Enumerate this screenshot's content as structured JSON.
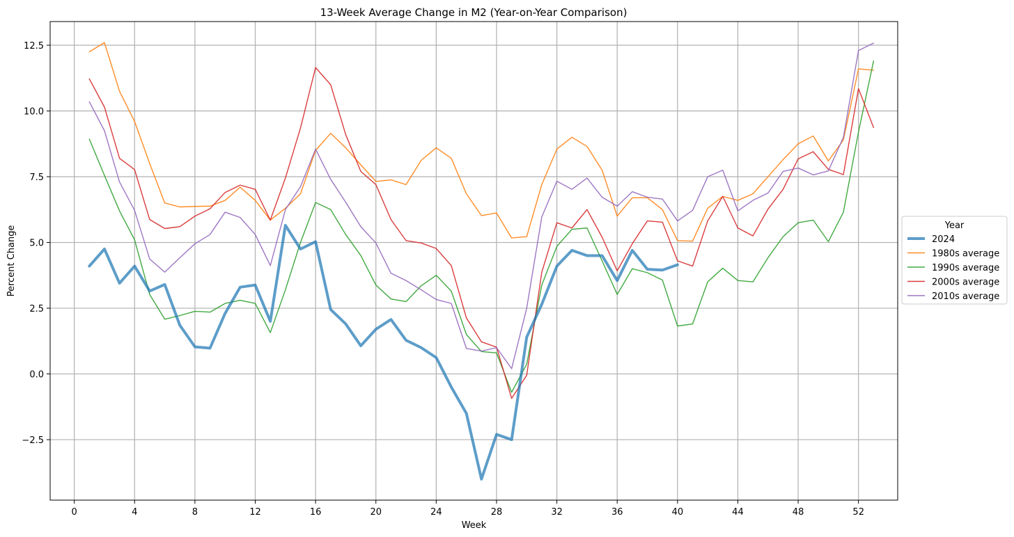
{
  "chart_data": {
    "type": "line",
    "title": "13-Week Average Change in M2 (Year-on-Year Comparison)",
    "xlabel": "Week",
    "ylabel": "Percent Change",
    "xlim": [
      -1.6,
      54.6
    ],
    "ylim": [
      -4.8,
      13.4
    ],
    "xticks": [
      0,
      4,
      8,
      12,
      16,
      20,
      24,
      28,
      32,
      36,
      40,
      44,
      48,
      52
    ],
    "yticks": [
      -2.5,
      0.0,
      2.5,
      5.0,
      7.5,
      10.0,
      12.5
    ],
    "ytick_labels": [
      "−2.5",
      "0.0",
      "2.5",
      "5.0",
      "7.5",
      "10.0",
      "12.5"
    ],
    "grid": true,
    "legend": {
      "title": "Year",
      "placement": "center-right-outside"
    },
    "series": [
      {
        "name": "2024",
        "color": "#1f77b4",
        "values": [
          4.1,
          4.75,
          3.45,
          4.1,
          3.15,
          3.4,
          1.85,
          1.03,
          0.98,
          2.3,
          3.3,
          3.38,
          2.0,
          5.65,
          4.75,
          5.03,
          2.45,
          1.9,
          1.07,
          1.7,
          2.07,
          1.28,
          1.0,
          0.62,
          -0.5,
          -1.5,
          -4.0,
          -2.3,
          -2.5,
          1.4,
          2.65,
          4.1,
          4.7,
          4.5,
          4.5,
          3.55,
          4.7,
          3.98,
          3.95,
          4.15
        ]
      },
      {
        "name": "1980s average",
        "color": "#ff7f0e",
        "values": [
          12.25,
          12.6,
          10.75,
          9.6,
          8.0,
          6.5,
          6.35,
          6.37,
          6.38,
          6.6,
          7.1,
          6.6,
          5.85,
          6.3,
          6.85,
          8.5,
          9.15,
          8.6,
          7.95,
          7.32,
          7.38,
          7.2,
          8.12,
          8.6,
          8.2,
          6.85,
          6.02,
          6.12,
          5.17,
          5.22,
          7.2,
          8.55,
          9.0,
          8.65,
          7.75,
          6.0,
          6.7,
          6.7,
          6.25,
          5.07,
          5.05,
          6.3,
          6.75,
          6.6,
          6.85,
          7.5,
          8.15,
          8.75,
          9.05,
          8.1,
          8.9,
          11.6,
          11.55
        ]
      },
      {
        "name": "1990s average",
        "color": "#2ca02c",
        "values": [
          8.93,
          7.55,
          6.2,
          5.1,
          3.02,
          2.08,
          2.22,
          2.38,
          2.35,
          2.68,
          2.8,
          2.68,
          1.57,
          3.2,
          5.0,
          6.52,
          6.25,
          5.3,
          4.5,
          3.38,
          2.85,
          2.75,
          3.35,
          3.75,
          3.15,
          1.5,
          0.85,
          0.8,
          -0.7,
          0.37,
          3.38,
          4.85,
          5.5,
          5.55,
          4.3,
          3.02,
          4.0,
          3.85,
          3.57,
          1.82,
          1.9,
          3.5,
          4.02,
          3.55,
          3.5,
          4.42,
          5.22,
          5.75,
          5.85,
          5.03,
          6.15,
          9.2,
          11.9
        ]
      },
      {
        "name": "2000s average",
        "color": "#d62728",
        "values": [
          11.22,
          10.15,
          8.2,
          7.77,
          5.87,
          5.53,
          5.6,
          6.0,
          6.28,
          6.9,
          7.18,
          7.02,
          5.85,
          7.45,
          9.35,
          11.65,
          11.0,
          9.1,
          7.7,
          7.2,
          5.87,
          5.07,
          4.98,
          4.77,
          4.12,
          2.13,
          1.22,
          1.02,
          -0.93,
          -0.05,
          3.87,
          5.75,
          5.55,
          6.25,
          5.2,
          3.92,
          4.95,
          5.82,
          5.77,
          4.3,
          4.1,
          5.82,
          6.75,
          5.55,
          5.25,
          6.27,
          7.02,
          8.18,
          8.45,
          7.78,
          7.58,
          10.85,
          9.37
        ]
      },
      {
        "name": "2010s average",
        "color": "#9467bd",
        "values": [
          10.35,
          9.25,
          7.3,
          6.22,
          4.37,
          3.87,
          4.42,
          4.95,
          5.3,
          6.15,
          5.95,
          5.3,
          4.12,
          6.25,
          7.12,
          8.55,
          7.4,
          6.53,
          5.6,
          4.98,
          3.83,
          3.55,
          3.2,
          2.83,
          2.68,
          0.97,
          0.87,
          1.0,
          0.2,
          2.5,
          5.97,
          7.33,
          7.02,
          7.45,
          6.72,
          6.38,
          6.93,
          6.72,
          6.65,
          5.82,
          6.22,
          7.5,
          7.75,
          6.2,
          6.6,
          6.88,
          7.7,
          7.83,
          7.57,
          7.72,
          9.0,
          12.3,
          12.58
        ]
      }
    ]
  }
}
